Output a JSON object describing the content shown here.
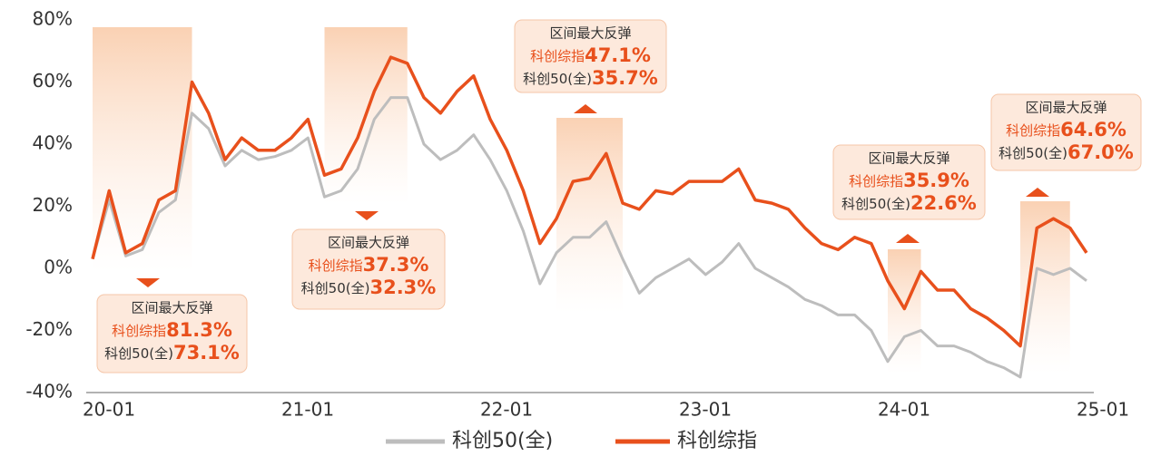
{
  "chart_data": {
    "type": "line",
    "x": [
      "20-01",
      "20-02",
      "20-03",
      "20-04",
      "20-05",
      "20-06",
      "20-07",
      "20-08",
      "20-09",
      "20-10",
      "20-11",
      "20-12",
      "21-01",
      "21-02",
      "21-03",
      "21-04",
      "21-05",
      "21-06",
      "21-07",
      "21-08",
      "21-09",
      "21-10",
      "21-11",
      "21-12",
      "22-01",
      "22-02",
      "22-03",
      "22-04",
      "22-05",
      "22-06",
      "22-07",
      "22-08",
      "22-09",
      "22-10",
      "22-11",
      "22-12",
      "23-01",
      "23-02",
      "23-03",
      "23-04",
      "23-05",
      "23-06",
      "23-07",
      "23-08",
      "23-09",
      "23-10",
      "23-11",
      "23-12",
      "24-01",
      "24-02",
      "24-03",
      "24-04",
      "24-05",
      "24-06",
      "24-07",
      "24-08",
      "24-09",
      "24-10",
      "24-11",
      "24-12",
      "25-01"
    ],
    "xticks": [
      "20-01",
      "21-01",
      "22-01",
      "23-01",
      "24-01",
      "25-01"
    ],
    "ylim": [
      -40,
      80
    ],
    "yticks": [
      {
        "value": -40,
        "label": "-40%"
      },
      {
        "value": -20,
        "label": "-20%"
      },
      {
        "value": 0,
        "label": "0%"
      },
      {
        "value": 20,
        "label": "20%"
      },
      {
        "value": 40,
        "label": "40%"
      },
      {
        "value": 60,
        "label": "60%"
      },
      {
        "value": 80,
        "label": "80%"
      }
    ],
    "series": [
      {
        "name": "科创50(全)",
        "color": "#bdbdbd",
        "values": [
          3,
          22,
          4,
          6,
          18,
          22,
          50,
          45,
          33,
          38,
          35,
          36,
          38,
          42,
          23,
          25,
          32,
          48,
          55,
          55,
          40,
          35,
          38,
          43,
          35,
          25,
          12,
          -5,
          5,
          10,
          10,
          15,
          3,
          -8,
          -3,
          0,
          3,
          -2,
          2,
          8,
          0,
          -3,
          -6,
          -10,
          -12,
          -15,
          -15,
          -20,
          -30,
          -22,
          -20,
          -25,
          -25,
          -27,
          -30,
          -32,
          -35,
          0,
          -2,
          0,
          -4
        ]
      },
      {
        "name": "科创综指",
        "color": "#e8501c",
        "values": [
          3,
          25,
          5,
          8,
          22,
          25,
          60,
          50,
          35,
          42,
          38,
          38,
          42,
          48,
          30,
          32,
          42,
          57,
          68,
          66,
          55,
          50,
          57,
          62,
          48,
          38,
          25,
          8,
          16,
          28,
          29,
          37,
          21,
          19,
          25,
          24,
          28,
          28,
          28,
          32,
          22,
          21,
          19,
          13,
          8,
          6,
          10,
          8,
          -4,
          -13,
          -1,
          -7,
          -7,
          -13,
          -16,
          -20,
          -25,
          13,
          16,
          13,
          5
        ]
      }
    ],
    "annotation_title": "区间最大反弹",
    "annotations": [
      {
        "x_range": [
          "20-01",
          "20-07"
        ],
        "values": [
          81.3,
          73.1
        ],
        "value_labels": [
          "81.3%",
          "73.1%"
        ]
      },
      {
        "x_range": [
          "21-03",
          "21-08"
        ],
        "values": [
          37.3,
          32.3
        ],
        "value_labels": [
          "37.3%",
          "32.3%"
        ]
      },
      {
        "x_range": [
          "22-05",
          "22-09"
        ],
        "values": [
          47.1,
          35.7
        ],
        "value_labels": [
          "47.1%",
          "35.7%"
        ]
      },
      {
        "x_range": [
          "24-01",
          "24-03"
        ],
        "values": [
          35.9,
          22.6
        ],
        "value_labels": [
          "35.9%",
          "22.6%"
        ]
      },
      {
        "x_range": [
          "24-09",
          "24-12"
        ],
        "values": [
          64.6,
          67.0
        ],
        "value_labels": [
          "64.6%",
          "67.0%"
        ]
      }
    ]
  }
}
